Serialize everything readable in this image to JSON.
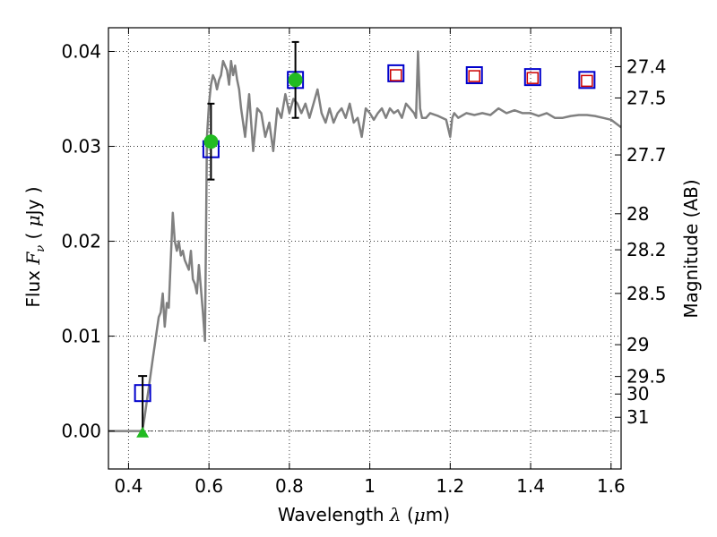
{
  "chart_data": {
    "type": "line",
    "xlabel_parts": [
      "Wavelength  ",
      "λ",
      " (",
      "μ",
      "m)"
    ],
    "ylabel_parts": [
      "Flux  ",
      "F",
      "ν",
      "  ( ",
      "μ",
      "Jy )"
    ],
    "y2label": "Magnitude (AB)",
    "xlim": [
      0.35,
      1.625
    ],
    "ylim": [
      -0.004,
      0.0425
    ],
    "grid": true,
    "x_ticks": [
      0.4,
      0.6,
      0.8,
      1.0,
      1.2,
      1.4,
      1.6
    ],
    "x_tick_labels": [
      "0.4",
      "0.6",
      "0.8",
      "1",
      "1.2",
      "1.4",
      "1.6"
    ],
    "y_ticks": [
      0.0,
      0.01,
      0.02,
      0.03,
      0.04
    ],
    "y_tick_labels": [
      "0.00",
      "0.01",
      "0.02",
      "0.03",
      "0.04"
    ],
    "y2_ticks": [
      {
        "label": "27.4",
        "flux": 0.0384
      },
      {
        "label": "27.5",
        "flux": 0.0351
      },
      {
        "label": "27.7",
        "flux": 0.0291
      },
      {
        "label": "28",
        "flux": 0.0229
      },
      {
        "label": "28.2",
        "flux": 0.0191
      },
      {
        "label": "28.5",
        "flux": 0.0145
      },
      {
        "label": "29",
        "flux": 0.0091
      },
      {
        "label": "29.5",
        "flux": 0.00575
      },
      {
        "label": "30",
        "flux": 0.0039
      },
      {
        "label": "31",
        "flux": 0.00145
      }
    ],
    "colors": {
      "model": "#808080",
      "model_squares": "#0000cc",
      "predicted_squares": "#cc0000",
      "observed": "#22bb22",
      "errorbar": "#000000"
    },
    "series": [
      {
        "kind": "model_spectrum",
        "x": [
          0.35,
          0.43,
          0.435,
          0.44,
          0.445,
          0.45,
          0.455,
          0.46,
          0.465,
          0.47,
          0.475,
          0.48,
          0.485,
          0.49,
          0.495,
          0.5,
          0.505,
          0.51,
          0.515,
          0.52,
          0.525,
          0.53,
          0.535,
          0.54,
          0.545,
          0.55,
          0.555,
          0.56,
          0.565,
          0.57,
          0.575,
          0.58,
          0.585,
          0.59,
          0.595,
          0.6,
          0.605,
          0.61,
          0.615,
          0.62,
          0.625,
          0.63,
          0.635,
          0.64,
          0.645,
          0.65,
          0.655,
          0.66,
          0.665,
          0.67,
          0.675,
          0.68,
          0.69,
          0.7,
          0.71,
          0.72,
          0.73,
          0.74,
          0.75,
          0.76,
          0.77,
          0.78,
          0.79,
          0.8,
          0.81,
          0.82,
          0.83,
          0.84,
          0.85,
          0.86,
          0.87,
          0.88,
          0.89,
          0.9,
          0.91,
          0.92,
          0.93,
          0.94,
          0.95,
          0.96,
          0.97,
          0.98,
          0.99,
          1.0,
          1.01,
          1.02,
          1.03,
          1.04,
          1.05,
          1.06,
          1.07,
          1.08,
          1.09,
          1.1,
          1.11,
          1.115,
          1.12,
          1.125,
          1.13,
          1.14,
          1.15,
          1.17,
          1.19,
          1.2,
          1.205,
          1.21,
          1.22,
          1.24,
          1.26,
          1.28,
          1.3,
          1.32,
          1.34,
          1.36,
          1.38,
          1.4,
          1.42,
          1.44,
          1.46,
          1.48,
          1.5,
          1.52,
          1.54,
          1.56,
          1.58,
          1.6,
          1.625
        ],
        "y": [
          0.0,
          0.0,
          0.0002,
          0.0015,
          0.003,
          0.0045,
          0.006,
          0.0075,
          0.009,
          0.0105,
          0.012,
          0.0125,
          0.0145,
          0.011,
          0.0135,
          0.013,
          0.018,
          0.023,
          0.02,
          0.019,
          0.02,
          0.0185,
          0.019,
          0.018,
          0.0175,
          0.017,
          0.019,
          0.016,
          0.0155,
          0.0145,
          0.0175,
          0.015,
          0.0125,
          0.0095,
          0.031,
          0.0345,
          0.0365,
          0.0375,
          0.037,
          0.036,
          0.037,
          0.0375,
          0.039,
          0.0385,
          0.038,
          0.0365,
          0.039,
          0.0375,
          0.0385,
          0.037,
          0.036,
          0.034,
          0.031,
          0.0355,
          0.0295,
          0.034,
          0.0335,
          0.031,
          0.0325,
          0.0295,
          0.034,
          0.033,
          0.0355,
          0.0335,
          0.035,
          0.0345,
          0.0335,
          0.0345,
          0.033,
          0.0345,
          0.036,
          0.0335,
          0.0325,
          0.034,
          0.0325,
          0.0335,
          0.034,
          0.033,
          0.0345,
          0.0325,
          0.033,
          0.031,
          0.034,
          0.0335,
          0.0328,
          0.0335,
          0.034,
          0.033,
          0.034,
          0.0335,
          0.0338,
          0.033,
          0.0345,
          0.034,
          0.0335,
          0.033,
          0.04,
          0.034,
          0.033,
          0.033,
          0.0335,
          0.0332,
          0.0328,
          0.031,
          0.033,
          0.0335,
          0.033,
          0.0335,
          0.0333,
          0.0335,
          0.0333,
          0.034,
          0.0335,
          0.0338,
          0.0335,
          0.0335,
          0.0332,
          0.0335,
          0.033,
          0.033,
          0.0332,
          0.0333,
          0.0333,
          0.0332,
          0.033,
          0.0328,
          0.032
        ]
      },
      {
        "kind": "model_squares",
        "x": [
          0.435,
          0.605,
          0.815,
          1.065,
          1.26,
          1.405,
          1.54
        ],
        "y": [
          0.004,
          0.0297,
          0.037,
          0.0377,
          0.0375,
          0.0373,
          0.037
        ]
      },
      {
        "kind": "predicted_squares",
        "x": [
          1.065,
          1.26,
          1.405,
          1.54
        ],
        "y": [
          0.0375,
          0.0374,
          0.0372,
          0.0369
        ]
      },
      {
        "kind": "observed_points",
        "x": [
          0.605,
          0.815
        ],
        "y": [
          0.0305,
          0.037
        ],
        "yerr_low": [
          0.0265,
          0.033
        ],
        "yerr_high": [
          0.0345,
          0.041
        ]
      },
      {
        "kind": "upper_limit",
        "x": [
          0.435
        ],
        "y": [
          -0.0002
        ],
        "yerr_high": [
          0.0058
        ]
      }
    ]
  }
}
